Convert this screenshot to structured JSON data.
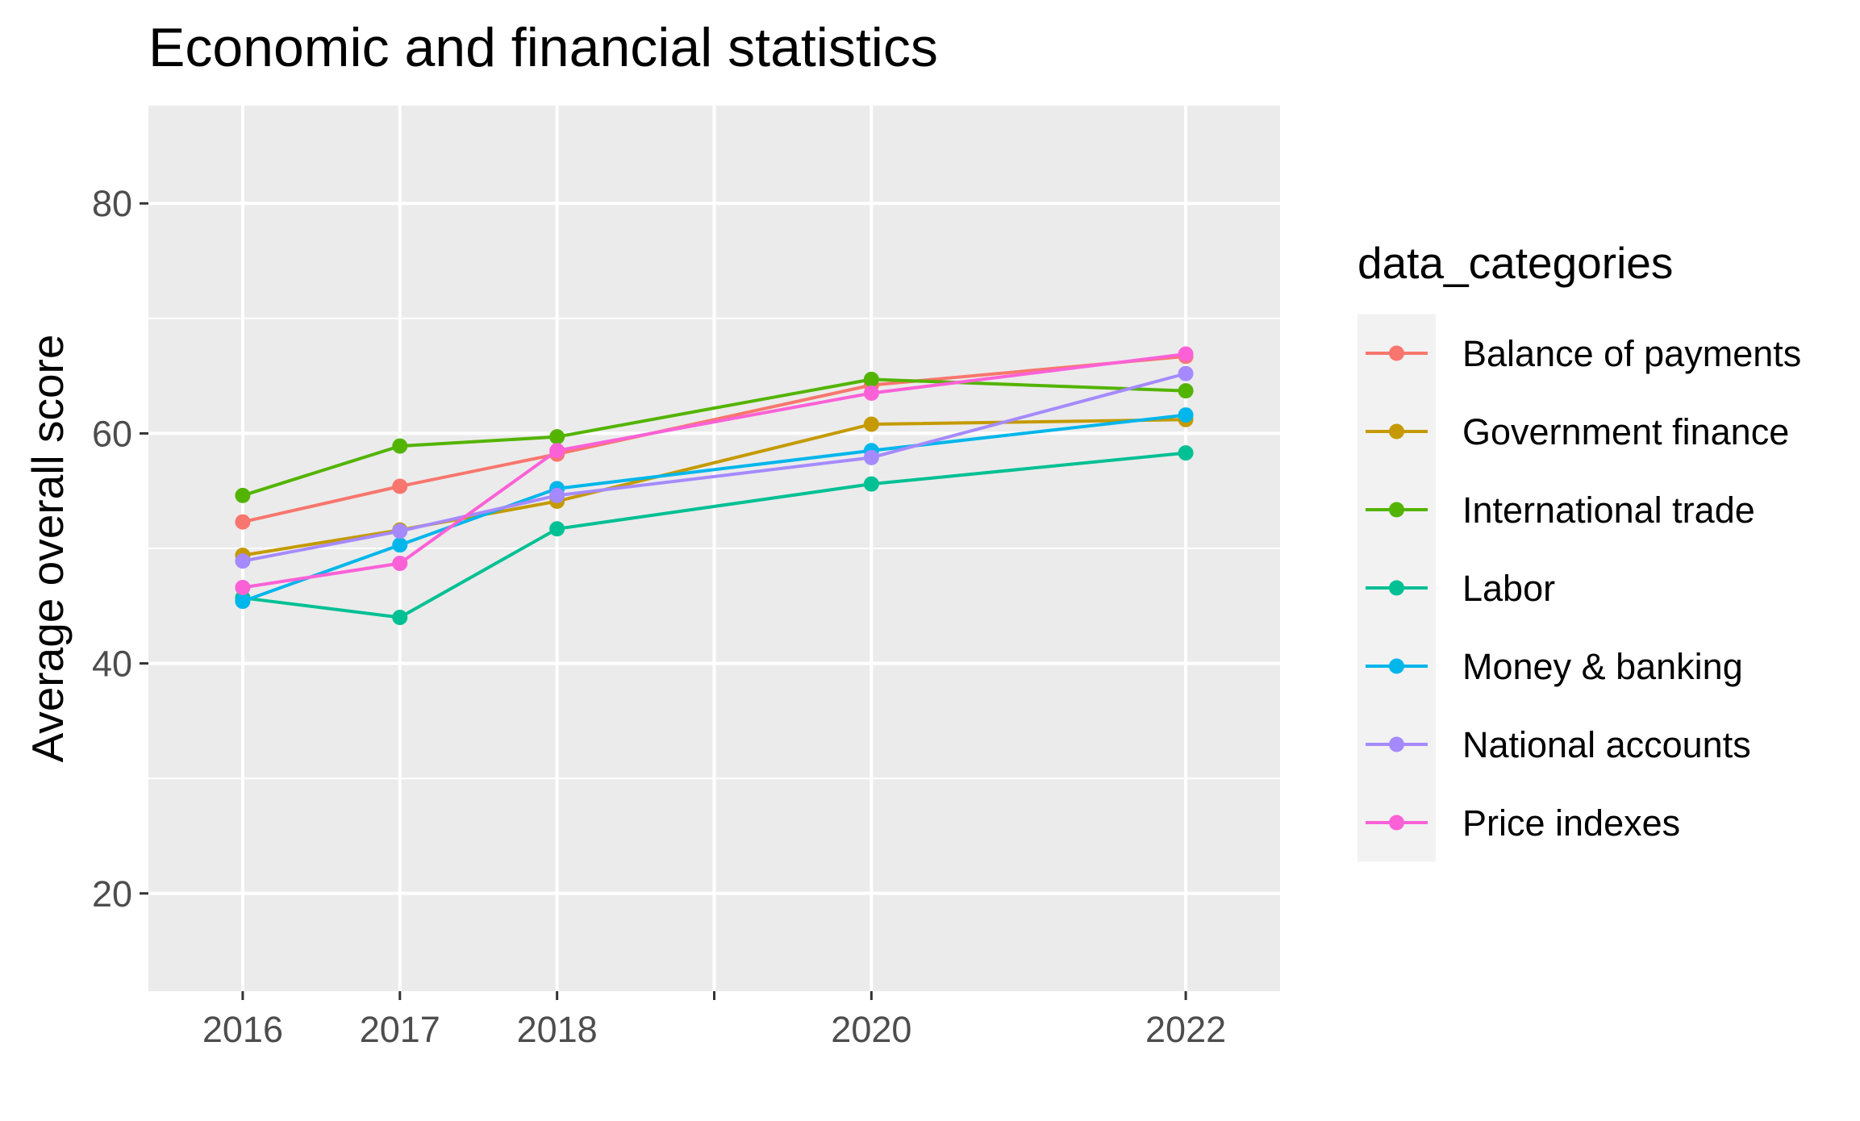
{
  "chart_data": {
    "type": "line",
    "title": "Economic and financial statistics",
    "xlabel": "",
    "ylabel": "Average overall score",
    "x": [
      2016,
      2017,
      2018,
      2020,
      2022
    ],
    "x_tick_labels": [
      "2016",
      "2017",
      "2018",
      "2020",
      "2022"
    ],
    "xlim": [
      2015.4,
      2022.6
    ],
    "ylim": [
      11.5,
      88.5
    ],
    "y_ticks": [
      20,
      40,
      60,
      80
    ],
    "y_tick_labels": [
      "20",
      "40",
      "60",
      "80"
    ],
    "grid": true,
    "legend_title": "data_categories",
    "legend_position": "right",
    "series": [
      {
        "name": "Balance of payments",
        "color": "#F8766D",
        "values": [
          52.3,
          55.4,
          58.2,
          64.2,
          66.7
        ]
      },
      {
        "name": "Government finance",
        "color": "#C49A00",
        "values": [
          49.4,
          51.6,
          54.1,
          60.8,
          61.2
        ]
      },
      {
        "name": "International trade",
        "color": "#53B400",
        "values": [
          54.6,
          58.9,
          59.7,
          64.7,
          63.7
        ]
      },
      {
        "name": "Labor",
        "color": "#00C094",
        "values": [
          45.7,
          44.0,
          51.7,
          55.6,
          58.3
        ]
      },
      {
        "name": "Money & banking",
        "color": "#00B6EB",
        "values": [
          45.4,
          50.3,
          55.2,
          58.5,
          61.6
        ]
      },
      {
        "name": "National accounts",
        "color": "#A58AFF",
        "values": [
          48.9,
          51.5,
          54.6,
          57.9,
          65.2
        ]
      },
      {
        "name": "Price indexes",
        "color": "#FB61D7",
        "values": [
          46.6,
          48.7,
          58.5,
          63.5,
          66.9
        ]
      }
    ]
  }
}
